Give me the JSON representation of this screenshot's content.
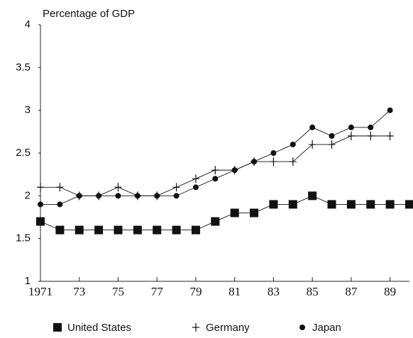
{
  "chart_data": {
    "type": "line",
    "title": "Percentage of GDP",
    "x": [
      1971,
      1972,
      1973,
      1974,
      1975,
      1976,
      1977,
      1978,
      1979,
      1980,
      1981,
      1982,
      1983,
      1984,
      1985,
      1986,
      1987,
      1988,
      1989,
      1990
    ],
    "xlim": [
      1971,
      1990
    ],
    "xticks": [
      1971,
      {
        "value": 1973,
        "label": "73"
      },
      {
        "value": 1975,
        "label": "75"
      },
      {
        "value": 1977,
        "label": "77"
      },
      {
        "value": 1979,
        "label": "79"
      },
      {
        "value": 1981,
        "label": "81"
      },
      {
        "value": 1983,
        "label": "83"
      },
      {
        "value": 1985,
        "label": "85"
      },
      {
        "value": 1987,
        "label": "87"
      },
      {
        "value": 1989,
        "label": "89"
      }
    ],
    "ylim": [
      1,
      4
    ],
    "yticks": [
      1,
      1.5,
      2,
      2.5,
      3,
      3.5,
      4
    ],
    "series": [
      {
        "name": "United States",
        "marker": "square",
        "color": "#111111",
        "values": [
          1.7,
          1.6,
          1.6,
          1.6,
          1.6,
          1.6,
          1.6,
          1.6,
          1.6,
          1.7,
          1.8,
          1.8,
          1.9,
          1.9,
          2.0,
          1.9,
          1.9,
          1.9,
          1.9,
          1.9
        ]
      },
      {
        "name": "Germany",
        "marker": "plus",
        "color": "#111111",
        "values": [
          2.1,
          2.1,
          2.0,
          2.0,
          2.1,
          2.0,
          2.0,
          2.1,
          2.2,
          2.3,
          2.3,
          2.4,
          2.4,
          2.4,
          2.6,
          2.6,
          2.7,
          2.7,
          2.7,
          null
        ]
      },
      {
        "name": "Japan",
        "marker": "circle",
        "color": "#111111",
        "values": [
          1.9,
          1.9,
          2.0,
          2.0,
          2.0,
          2.0,
          2.0,
          2.0,
          2.1,
          2.2,
          2.3,
          2.4,
          2.5,
          2.6,
          2.8,
          2.7,
          2.8,
          2.8,
          3.0,
          null
        ]
      }
    ]
  }
}
